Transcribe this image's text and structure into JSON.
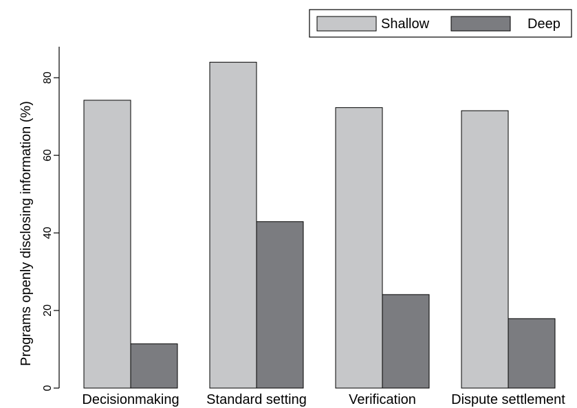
{
  "chart_data": {
    "type": "bar",
    "categories": [
      "Decisionmaking",
      "Standard setting",
      "Verification",
      "Dispute settlement"
    ],
    "series": [
      {
        "name": "Shallow",
        "values": [
          74.2,
          84.0,
          72.3,
          71.5
        ],
        "color": "#c6c7c9"
      },
      {
        "name": "Deep",
        "values": [
          11.4,
          42.9,
          24.1,
          17.9
        ],
        "color": "#7b7c80"
      }
    ],
    "ylabel": "Programs openly disclosing information (%)",
    "ylim": [
      0,
      88
    ],
    "yticks": [
      0,
      20,
      40,
      60,
      80
    ],
    "ytick_labels": [
      "0",
      "20",
      "40",
      "60",
      "80"
    ],
    "grid": false,
    "legend_position": "top-right"
  }
}
